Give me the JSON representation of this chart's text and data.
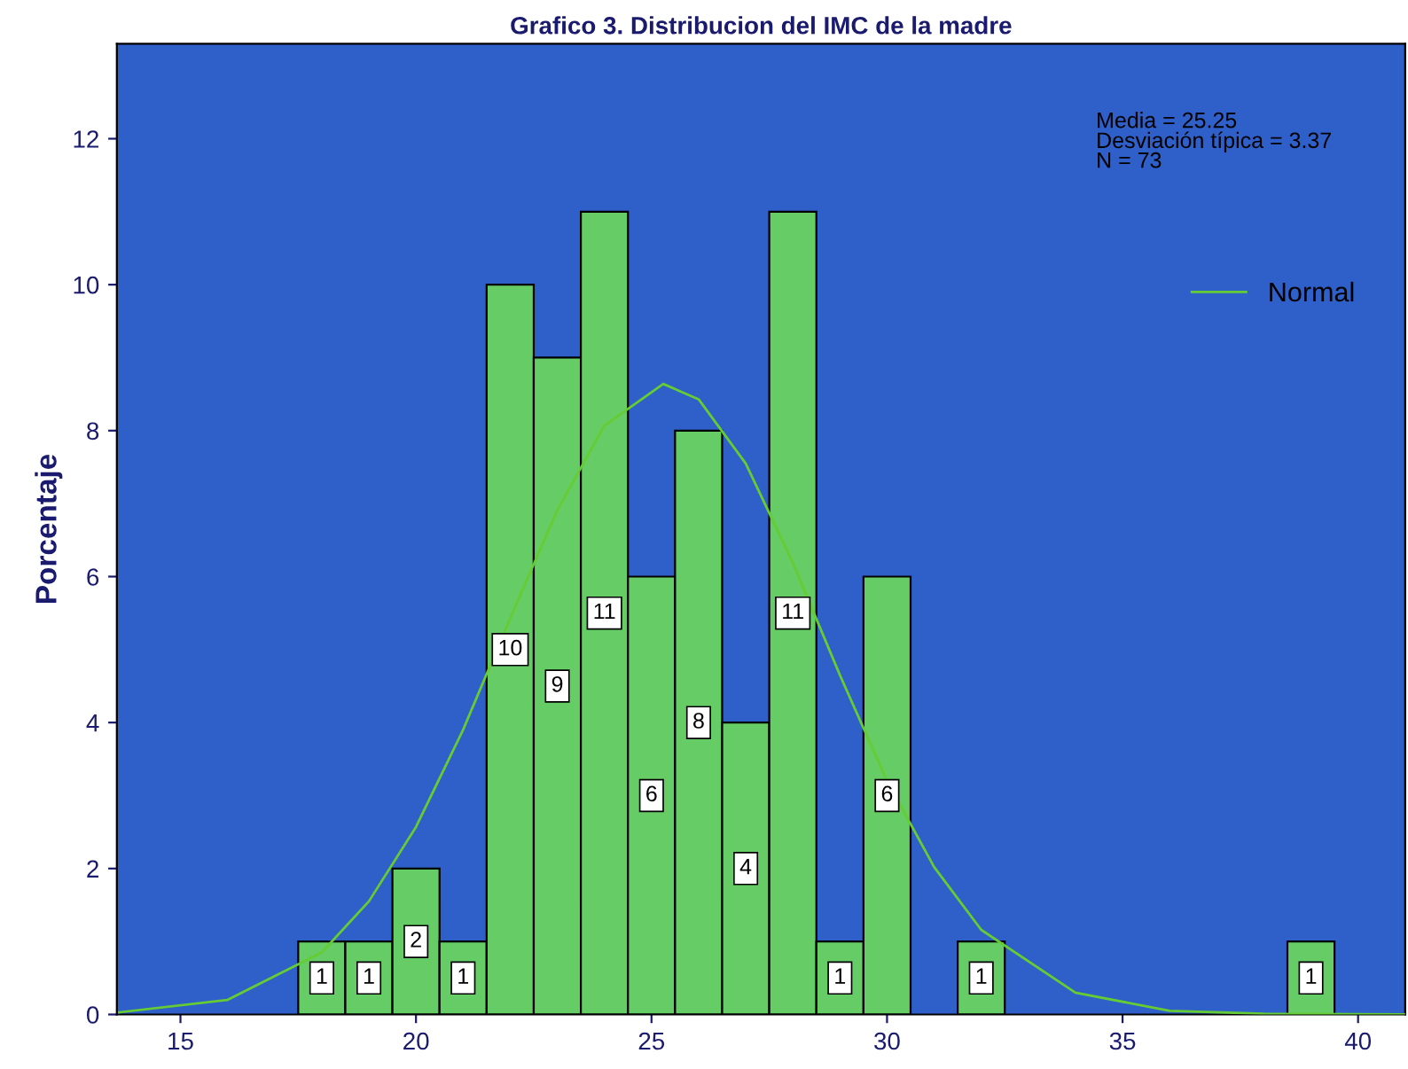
{
  "chart_data": {
    "type": "histogram",
    "title": "Grafico 3. Distribucion del IMC de la madre",
    "ylabel": "Porcentaje",
    "bins": [
      17.5,
      18.5,
      19.5,
      20.5,
      21.5,
      22.5,
      23.5,
      24.5,
      25.5,
      26.5,
      27.5,
      28.5,
      29.5,
      30.5,
      31.5,
      32.5,
      33.5,
      34.5,
      35.5,
      36.5,
      37.5,
      38.5,
      39.5
    ],
    "values": [
      1,
      1,
      2,
      1,
      10,
      9,
      11,
      6,
      8,
      4,
      11,
      1,
      6,
      0,
      1,
      0,
      0,
      0,
      0,
      0,
      0,
      1
    ],
    "color": "#66cc66",
    "value_labels": [
      "1",
      "1",
      "2",
      "1",
      "10",
      "9",
      "11",
      "6",
      "8",
      "4",
      "11",
      "1",
      "6",
      null,
      "1",
      null,
      null,
      null,
      null,
      null,
      null,
      "1"
    ],
    "series": [
      {
        "type": "line",
        "name": "Normal",
        "color": "#66cc33",
        "x": [
          13.7,
          16,
          18,
          19,
          20,
          21,
          22,
          23,
          24,
          25.25,
          26,
          27,
          28,
          29,
          30,
          31,
          32,
          34,
          36,
          38,
          41
        ],
        "values": [
          0.03,
          0.2,
          0.85,
          1.55,
          2.57,
          3.9,
          5.43,
          6.91,
          8.07,
          8.64,
          8.43,
          7.55,
          6.19,
          4.65,
          3.2,
          2.02,
          1.16,
          0.3,
          0.05,
          0.01,
          0
        ]
      }
    ],
    "annotations": [
      "Media = 25.25\nDesviación típica = 3.37\nN = 73"
    ],
    "xlim": [
      13.65,
      41
    ],
    "ylim": [
      0,
      13.3
    ],
    "xticks": [
      15,
      20,
      25,
      30,
      35,
      40
    ],
    "yticks": [
      0,
      2,
      4,
      6,
      8,
      10,
      12
    ],
    "grid": false,
    "legend": "top right"
  }
}
